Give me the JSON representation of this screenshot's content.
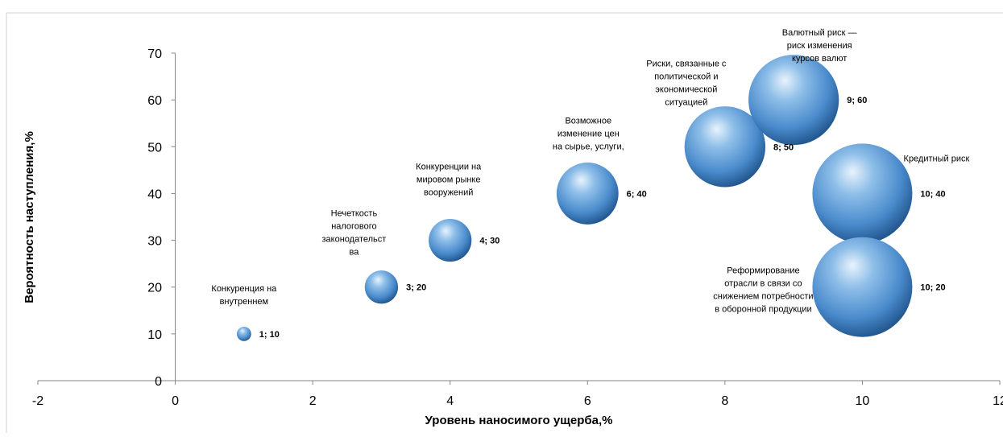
{
  "chart_data": {
    "type": "bubble",
    "title": "",
    "xlabel": "Уровень наносимого  ущерба,%",
    "ylabel": "Вероятность  наступления,%",
    "xlim": [
      -2,
      12
    ],
    "ylim": [
      0,
      70
    ],
    "xticks": [
      -2,
      0,
      2,
      4,
      6,
      8,
      10,
      12
    ],
    "yticks": [
      0,
      10,
      20,
      30,
      40,
      50,
      60,
      70
    ],
    "xtick_labels": [
      "-2",
      "0",
      "2",
      "4",
      "6",
      "8",
      "10",
      "12"
    ],
    "ytick_labels": [
      "0",
      "10",
      "20",
      "30",
      "40",
      "50",
      "60",
      "70"
    ],
    "grid": false,
    "legend": "none",
    "bubble_color": "#5b9bd5",
    "points": [
      {
        "x": 1,
        "y": 10,
        "label": "1; 10",
        "annotation": [
          "Конкуренция на",
          "внутреннем"
        ]
      },
      {
        "x": 3,
        "y": 20,
        "label": "3; 20",
        "annotation": [
          "Нечеткость",
          "налогового",
          "законодательст",
          "ва"
        ]
      },
      {
        "x": 4,
        "y": 30,
        "label": "4; 30",
        "annotation": [
          "Конкуренции на",
          "мировом рынке",
          "вооружений"
        ]
      },
      {
        "x": 6,
        "y": 40,
        "label": "6; 40",
        "annotation": [
          "Возможное",
          "изменение цен",
          "на сырье, услуги,"
        ]
      },
      {
        "x": 8,
        "y": 50,
        "label": "8; 50",
        "annotation": [
          "Риски, связанные с",
          "политической и",
          "экономической",
          "ситуацией"
        ]
      },
      {
        "x": 9,
        "y": 60,
        "label": "9; 60",
        "annotation": [
          "Валютный риск —",
          "риск изменения",
          "курсов валют"
        ]
      },
      {
        "x": 10,
        "y": 40,
        "label": "10; 40",
        "annotation": [
          "Кредитный риск"
        ]
      },
      {
        "x": 10,
        "y": 20,
        "label": "10; 20",
        "annotation": [
          "Реформирование",
          "отрасли в связи со",
          "снижением потребности",
          "в оборонной продукции"
        ]
      }
    ]
  }
}
